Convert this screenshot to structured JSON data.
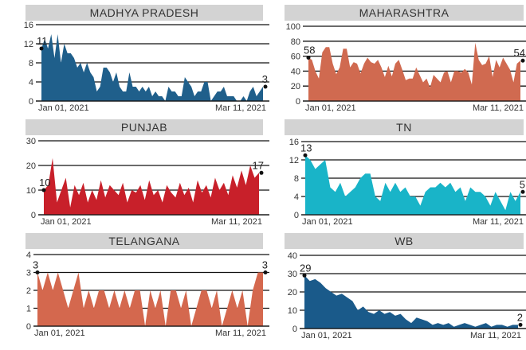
{
  "chart_data": [
    {
      "type": "area",
      "title": "MADHYA PRADESH",
      "color": "#1f5f8b",
      "yticks": [
        0,
        4,
        8,
        12,
        16
      ],
      "ylim": [
        0,
        16
      ],
      "x_start_label": "Jan 01, 2021",
      "x_end_label": "Mar 11, 2021",
      "first_label": "11",
      "last_label": "3",
      "values": [
        11,
        13,
        11,
        14,
        9,
        14,
        8,
        12,
        10,
        10,
        9,
        7,
        8,
        6,
        8,
        6,
        5,
        2,
        3,
        7,
        7,
        6,
        4,
        6,
        3,
        2,
        2,
        6,
        3,
        3,
        2,
        3,
        2,
        3,
        1,
        2,
        1,
        1,
        0,
        3,
        2,
        2,
        1,
        1,
        5,
        4,
        3,
        1,
        2,
        2,
        4,
        4,
        0,
        1,
        2,
        2,
        3,
        1,
        1,
        1,
        0,
        0,
        1,
        0,
        2,
        3,
        1,
        2,
        3
      ]
    },
    {
      "type": "area",
      "title": "MAHARASHTRA",
      "color": "#d06a50",
      "yticks": [
        0,
        20,
        40,
        60,
        80,
        100
      ],
      "ylim": [
        0,
        100
      ],
      "x_start_label": "Jan 01, 2021",
      "x_end_label": "Mar 11, 2021",
      "first_label": "58",
      "last_label": "54",
      "values": [
        58,
        55,
        40,
        30,
        65,
        72,
        72,
        50,
        36,
        45,
        70,
        70,
        45,
        52,
        50,
        37,
        50,
        58,
        52,
        50,
        55,
        45,
        32,
        47,
        33,
        50,
        55,
        42,
        28,
        30,
        30,
        45,
        35,
        25,
        30,
        18,
        35,
        30,
        25,
        38,
        40,
        25,
        40,
        40,
        38,
        43,
        38,
        22,
        78,
        55,
        48,
        50,
        60,
        32,
        55,
        45,
        58,
        50,
        42,
        25,
        50,
        54
      ]
    },
    {
      "type": "area",
      "title": "PUNJAB",
      "color": "#c8202a",
      "yticks": [
        0,
        10,
        20,
        30
      ],
      "ylim": [
        0,
        30
      ],
      "x_start_label": "Jan 01, 2021",
      "x_end_label": "Mar 11, 2021",
      "first_label": "10",
      "last_label": "17",
      "values": [
        10,
        12,
        23,
        5,
        10,
        15,
        3,
        12,
        8,
        13,
        5,
        10,
        6,
        14,
        7,
        12,
        10,
        8,
        13,
        5,
        10,
        9,
        12,
        6,
        14,
        8,
        10,
        5,
        12,
        9,
        7,
        13,
        8,
        11,
        5,
        14,
        9,
        12,
        7,
        15,
        10,
        13,
        8,
        16,
        11,
        18,
        12,
        20,
        15,
        17
      ]
    },
    {
      "type": "area",
      "title": "TN",
      "color": "#19b4c8",
      "yticks": [
        0,
        4,
        8,
        12,
        16
      ],
      "ylim": [
        0,
        16
      ],
      "x_start_label": "Jan 01, 2021",
      "x_end_label": "Mar 11, 2021",
      "first_label": "13",
      "last_label": "5",
      "values": [
        13,
        12,
        10,
        11,
        12,
        6,
        5,
        7,
        4,
        5,
        6,
        8,
        9,
        9,
        4,
        3,
        7,
        5,
        7,
        5,
        6,
        4,
        4,
        2,
        5,
        6,
        6,
        7,
        6,
        7,
        5,
        6,
        3,
        6,
        5,
        5,
        4,
        2,
        5,
        3,
        1,
        5,
        3,
        5
      ]
    },
    {
      "type": "area",
      "title": "TELANGANA",
      "color": "#d4684e",
      "yticks": [
        0,
        1,
        2,
        3,
        4
      ],
      "ylim": [
        0,
        4
      ],
      "x_start_label": "Jan 01, 2021",
      "x_end_label": "Mar 11, 2021",
      "first_label": "3",
      "last_label": "3",
      "values": [
        3,
        2,
        3,
        2,
        3,
        2,
        1,
        2,
        3,
        1,
        2,
        1,
        2,
        2,
        1,
        2,
        1,
        2,
        1,
        2,
        2,
        0,
        2,
        1,
        2,
        0,
        2,
        2,
        1,
        2,
        0,
        1,
        2,
        2,
        1,
        2,
        0,
        1,
        2,
        1,
        2,
        0,
        2,
        3,
        3
      ]
    },
    {
      "type": "area",
      "title": "WB",
      "color": "#1a5a8a",
      "yticks": [
        0,
        10,
        20,
        30,
        40
      ],
      "ylim": [
        0,
        40
      ],
      "x_start_label": "Jan 01, 2021",
      "x_end_label": "Mar 11, 2021",
      "first_label": "29",
      "last_label": "2",
      "values": [
        29,
        26,
        27,
        25,
        22,
        20,
        18,
        19,
        17,
        15,
        10,
        12,
        9,
        8,
        10,
        8,
        9,
        7,
        8,
        5,
        3,
        6,
        5,
        4,
        2,
        3,
        2,
        3,
        1,
        2,
        3,
        2,
        1,
        2,
        3,
        1,
        2,
        2,
        1,
        2,
        2
      ]
    }
  ]
}
